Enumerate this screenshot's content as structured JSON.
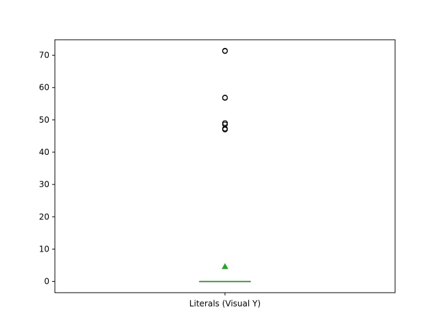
{
  "chart_data": {
    "type": "box",
    "categories": [
      "Literals (Visual Y)"
    ],
    "ylim": [
      -3.5,
      74.8
    ],
    "yticks": [
      0,
      10,
      20,
      30,
      40,
      50,
      60,
      70
    ],
    "grid": false,
    "colors": {
      "median": "#2ca02c",
      "mean": "#2ca02c",
      "box": "#000000",
      "outlier": "#000000"
    },
    "series": [
      {
        "box": {
          "whisker_low": 0,
          "q1": 0,
          "median": 0,
          "q3": 0,
          "whisker_high": 0
        },
        "mean": 4.6,
        "outliers": [
          71.3,
          71.4,
          56.8,
          56.9,
          48.6,
          49.0,
          47.0,
          47.3
        ]
      }
    ]
  }
}
